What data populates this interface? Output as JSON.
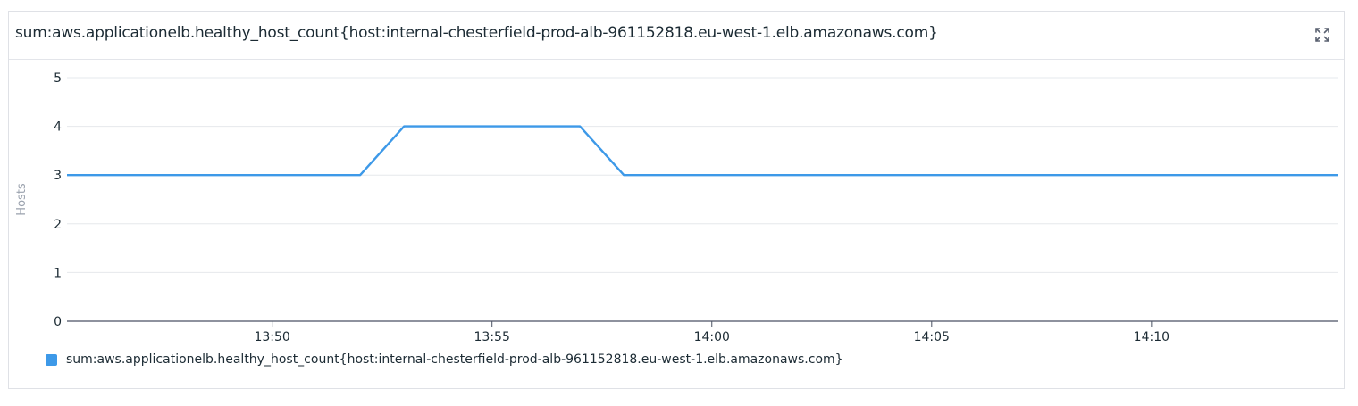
{
  "widget": {
    "title": "sum:aws.applicationelb.healthy_host_count{host:internal-chesterfield-prod-alb-961152818.eu-west-1.elb.amazonaws.com}",
    "expand_icon": "expand-icon"
  },
  "colors": {
    "series": "#3d99e8",
    "grid": "#e6e8ec",
    "axis": "#4a5263",
    "tick_text": "#1c2b34",
    "axis_label": "#9aa1ad"
  },
  "chart_data": {
    "type": "line",
    "title": "sum:aws.applicationelb.healthy_host_count{host:internal-chesterfield-prod-alb-961152818.eu-west-1.elb.amazonaws.com}",
    "xlabel": "",
    "ylabel": "Hosts",
    "ylim": [
      0,
      5
    ],
    "yticks": [
      "0",
      "1",
      "2",
      "3",
      "4",
      "5"
    ],
    "xlim": [
      "13:45:20",
      "14:14:15"
    ],
    "xticks": [
      "13:50",
      "13:55",
      "14:00",
      "14:05",
      "14:10"
    ],
    "grid": true,
    "legend_position": "bottom-left",
    "series": [
      {
        "name": "sum:aws.applicationelb.healthy_host_count{host:internal-chesterfield-prod-alb-961152818.eu-west-1.elb.amazonaws.com}",
        "x": [
          "13:45:20",
          "13:52:00",
          "13:53:00",
          "13:57:00",
          "13:58:00",
          "14:14:15"
        ],
        "values": [
          3,
          3,
          4,
          4,
          3,
          3
        ]
      }
    ]
  }
}
